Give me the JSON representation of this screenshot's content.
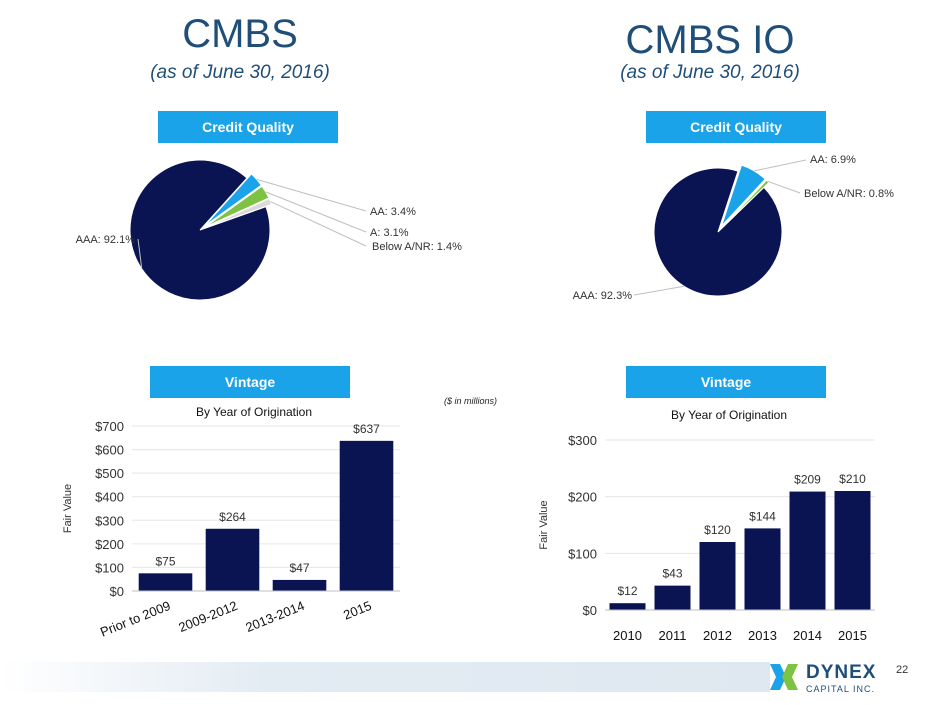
{
  "left": {
    "title": "CMBS",
    "subtitle": "(as of June 30, 2016)",
    "credit_header": "Credit Quality",
    "vintage_header": "Vintage"
  },
  "right": {
    "title": "CMBS IO",
    "subtitle": "(as of June 30, 2016)",
    "credit_header": "Credit Quality",
    "vintage_header": "Vintage"
  },
  "units_note": "($ in millions)",
  "page_number": "22",
  "logo": {
    "name": "DYNEX",
    "sub": "CAPITAL INC."
  },
  "colors": {
    "navy": "#0a1453",
    "light_blue": "#1aa3e8",
    "green": "#7dc242",
    "gray": "#d9d9d9",
    "title_blue": "#1f4e79"
  },
  "chart_data": [
    {
      "type": "pie",
      "name": "CMBS Credit Quality",
      "slices": [
        {
          "label": "AAA: 92.1%",
          "value": 92.1,
          "color": "#0a1453"
        },
        {
          "label": "AA: 3.4%",
          "value": 3.4,
          "color": "#1aa3e8"
        },
        {
          "label": "A: 3.1%",
          "value": 3.1,
          "color": "#7dc242"
        },
        {
          "label": "Below A/NR: 1.4%",
          "value": 1.4,
          "color": "#d9d9d9"
        }
      ]
    },
    {
      "type": "pie",
      "name": "CMBS IO Credit Quality",
      "slices": [
        {
          "label": "AAA: 92.3%",
          "value": 92.3,
          "color": "#0a1453"
        },
        {
          "label": "AA: 6.9%",
          "value": 6.9,
          "color": "#1aa3e8"
        },
        {
          "label": "Below A/NR: 0.8%",
          "value": 0.8,
          "color": "#7dc242"
        }
      ]
    },
    {
      "type": "bar",
      "name": "CMBS Vintage",
      "title": "By Year of Origination",
      "ylabel": "Fair Value",
      "xlabel": "",
      "categories": [
        "Prior to 2009",
        "2009-2012",
        "2013-2014",
        "2015"
      ],
      "values": [
        75,
        264,
        47,
        637
      ],
      "data_labels": [
        "$75",
        "$264",
        "$47",
        "$637"
      ],
      "ylim": [
        0,
        700
      ],
      "yticks": [
        0,
        100,
        200,
        300,
        400,
        500,
        600,
        700
      ],
      "ytick_labels": [
        "$0",
        "$100",
        "$200",
        "$300",
        "$400",
        "$500",
        "$600",
        "$700"
      ],
      "grid": true
    },
    {
      "type": "bar",
      "name": "CMBS IO Vintage",
      "title": "By Year of Origination",
      "ylabel": "Fair Value",
      "xlabel": "",
      "categories": [
        "2010",
        "2011",
        "2012",
        "2013",
        "2014",
        "2015"
      ],
      "values": [
        12,
        43,
        120,
        144,
        209,
        210
      ],
      "data_labels": [
        "$12",
        "$43",
        "$120",
        "$144",
        "$209",
        "$210"
      ],
      "ylim": [
        0,
        300
      ],
      "yticks": [
        0,
        100,
        200,
        300
      ],
      "ytick_labels": [
        "$0",
        "$100",
        "$200",
        "$300"
      ],
      "grid": true
    }
  ]
}
